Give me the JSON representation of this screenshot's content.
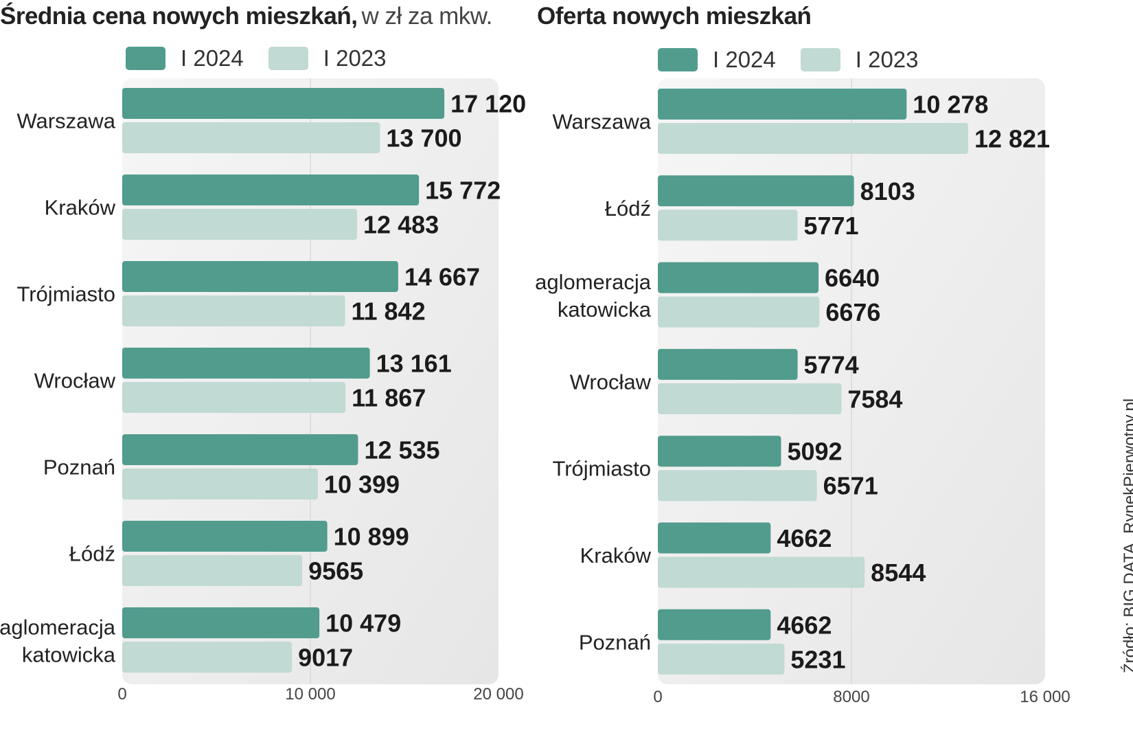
{
  "colors": {
    "y2024": "#519c8d",
    "y2023": "#c1dad3",
    "plot_bg_light": "#f6f6f6",
    "plot_bg_dark": "#e6e6e6",
    "grid": "#d4d4d4"
  },
  "source": "Źródło: BIG DATA, RynekPierwotny.pl",
  "chart_data": [
    {
      "type": "bar",
      "orientation": "horizontal",
      "title": "Średnia cena nowych mieszkań,",
      "subtitle": "w zł za mkw.",
      "categories": [
        "Warszawa",
        "Kraków",
        "Trójmiasto",
        "Wrocław",
        "Poznań",
        "Łódź",
        "aglomeracja katowicka"
      ],
      "series": [
        {
          "name": "I 2024",
          "values": [
            17120,
            15772,
            14667,
            13161,
            12535,
            10899,
            10479
          ],
          "labels": [
            "17 120",
            "15 772",
            "14 667",
            "13 161",
            "12 535",
            "10 899",
            "10 479"
          ]
        },
        {
          "name": "I 2023",
          "values": [
            13700,
            12483,
            11842,
            11867,
            10399,
            9565,
            9017
          ],
          "labels": [
            "13 700",
            "12 483",
            "11 842",
            "11 867",
            "10 399",
            "9565",
            "9017"
          ]
        }
      ],
      "xlim": [
        0,
        20000
      ],
      "ticks": [
        0,
        10000,
        20000
      ],
      "tick_labels": [
        "0",
        "10 000",
        "20 000"
      ],
      "grid": true
    },
    {
      "type": "bar",
      "orientation": "horizontal",
      "title": "Oferta nowych mieszkań",
      "subtitle": "",
      "categories": [
        "Warszawa",
        "Łódź",
        "aglomeracja katowicka",
        "Wrocław",
        "Trójmiasto",
        "Kraków",
        "Poznań"
      ],
      "series": [
        {
          "name": "I 2024",
          "values": [
            10278,
            8103,
            6640,
            5774,
            5092,
            4662,
            4662
          ],
          "labels": [
            "10 278",
            "8103",
            "6640",
            "5774",
            "5092",
            "4662",
            "4662"
          ]
        },
        {
          "name": "I 2023",
          "values": [
            12821,
            5771,
            6676,
            7584,
            6571,
            8544,
            5231
          ],
          "labels": [
            "12 821",
            "5771",
            "6676",
            "7584",
            "6571",
            "8544",
            "5231"
          ]
        }
      ],
      "xlim": [
        0,
        16000
      ],
      "ticks": [
        0,
        8000,
        16000
      ],
      "tick_labels": [
        "0",
        "8000",
        "16 000"
      ],
      "grid": true
    }
  ]
}
